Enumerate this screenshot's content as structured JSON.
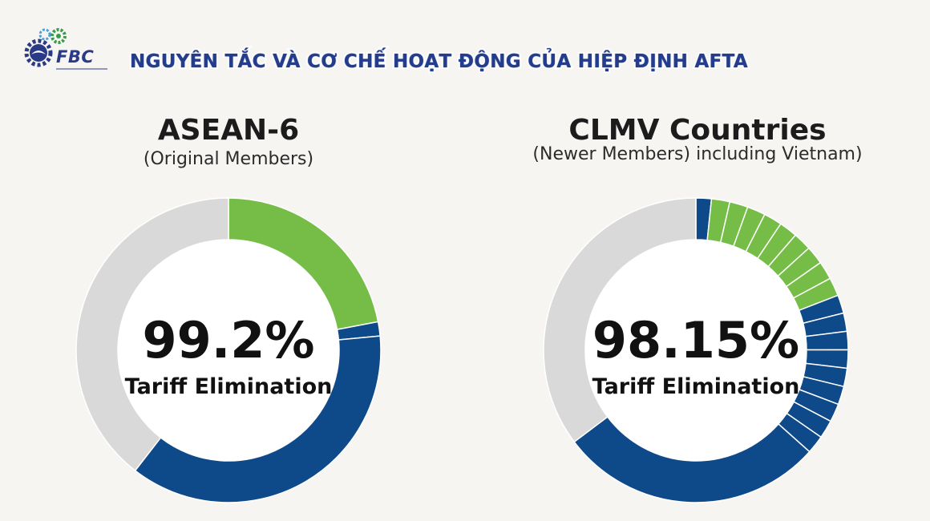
{
  "header": {
    "logo_text": "FBC",
    "title": "NGUYÊN TẮC VÀ CƠ CHẾ HOẠT ĐỘNG CỦA HIỆP ĐỊNH AFTA"
  },
  "colors": {
    "green": "#76bd48",
    "blue": "#0e4a8a",
    "grey": "#d9d9d9",
    "background": "#f6f5f2"
  },
  "chart_data": [
    {
      "type": "pie",
      "title": "ASEAN-6",
      "subtitle": "(Original Members)",
      "center_value": "99.2%",
      "center_label": "Tariff Elimination",
      "slices": [
        {
          "color": "green",
          "value": 22
        },
        {
          "color": "blue",
          "value": 1.5
        },
        {
          "color": "blue",
          "value": 37
        },
        {
          "color": "grey",
          "value": 39.5
        }
      ]
    },
    {
      "type": "pie",
      "title": "CLMV Countries",
      "subtitle": "(Newer Members) including Vietnam)",
      "center_value": "98.15%",
      "center_label": "Tariff Elimination",
      "slices": [
        {
          "color": "blue",
          "value": 1.6
        },
        {
          "color": "green",
          "value": 1.9
        },
        {
          "color": "green",
          "value": 1.9
        },
        {
          "color": "green",
          "value": 1.9
        },
        {
          "color": "green",
          "value": 1.9
        },
        {
          "color": "green",
          "value": 1.9
        },
        {
          "color": "green",
          "value": 1.9
        },
        {
          "color": "green",
          "value": 1.9
        },
        {
          "color": "green",
          "value": 1.9
        },
        {
          "color": "green",
          "value": 1.9
        },
        {
          "color": "blue",
          "value": 1.9
        },
        {
          "color": "blue",
          "value": 1.9
        },
        {
          "color": "blue",
          "value": 1.9
        },
        {
          "color": "blue",
          "value": 1.9
        },
        {
          "color": "blue",
          "value": 1.9
        },
        {
          "color": "blue",
          "value": 1.9
        },
        {
          "color": "blue",
          "value": 1.9
        },
        {
          "color": "blue",
          "value": 1.9
        },
        {
          "color": "blue",
          "value": 1.9
        },
        {
          "color": "blue",
          "value": 27.5
        },
        {
          "color": "grey",
          "value": 34.5
        }
      ]
    }
  ]
}
